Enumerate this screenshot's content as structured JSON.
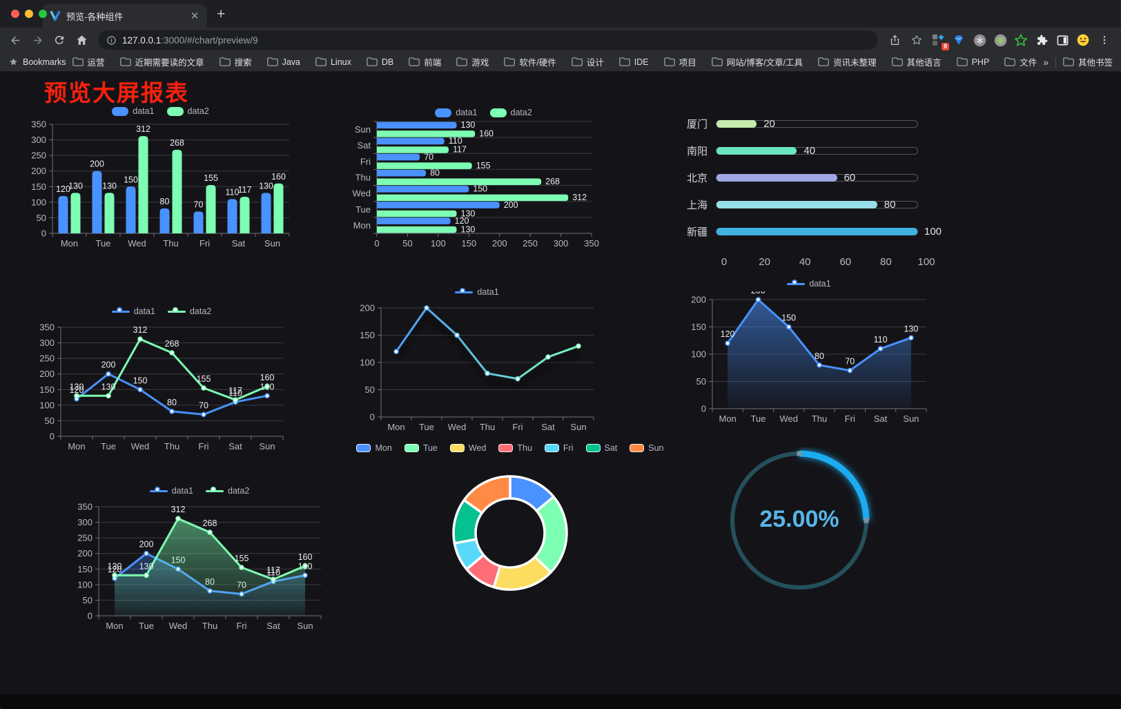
{
  "browser": {
    "tab_title": "预览-各种组件",
    "url_host": "127.0.0.1",
    "url_rest": ":3000/#/chart/preview/9",
    "bookmarks_label": "Bookmarks",
    "bookmarks": [
      "运营",
      "近期需要读的文章",
      "搜索",
      "Java",
      "Linux",
      "DB",
      "前端",
      "游戏",
      "软件/硬件",
      "设计",
      "IDE",
      "项目",
      "网站/博客/文章/工具",
      "资讯未整理",
      "其他语言",
      "PHP",
      "文件服务器"
    ],
    "overflow_chevron": "»",
    "other_bookmarks": "其他书签",
    "extension_badge": "9"
  },
  "page": {
    "title": "预览大屏报表",
    "title_color": "#fb200d",
    "background": "#141418"
  },
  "theme": {
    "axis_text": "#b8b8c4",
    "grid_line": "#3a3b42",
    "axis_line": "#71717a",
    "value_label": "#ececf0"
  },
  "chart_data": [
    {
      "id": "bar-grouped",
      "type": "bar",
      "categories": [
        "Mon",
        "Tue",
        "Wed",
        "Thu",
        "Fri",
        "Sat",
        "Sun"
      ],
      "series": [
        {
          "name": "data1",
          "color": "#4992ff",
          "values": [
            120,
            200,
            150,
            80,
            70,
            110,
            130
          ]
        },
        {
          "name": "data2",
          "color": "#7cffb2",
          "values": [
            130,
            130,
            312,
            268,
            155,
            117,
            160
          ]
        }
      ],
      "ylim": [
        0,
        350
      ],
      "ytick_step": 50,
      "grid": true,
      "legend_position": "top",
      "show_labels": true
    },
    {
      "id": "bar-horizontal",
      "type": "bar-horizontal",
      "categories": [
        "Mon",
        "Tue",
        "Wed",
        "Thu",
        "Fri",
        "Sat",
        "Sun"
      ],
      "series": [
        {
          "name": "data1",
          "color": "#4992ff",
          "values": [
            120,
            200,
            150,
            80,
            70,
            110,
            130
          ]
        },
        {
          "name": "data2",
          "color": "#7cffb2",
          "values": [
            130,
            130,
            312,
            268,
            155,
            117,
            160
          ]
        }
      ],
      "xlim": [
        0,
        350
      ],
      "xtick_step": 50,
      "grid": true,
      "legend_position": "top",
      "show_labels": true
    },
    {
      "id": "city-progress",
      "type": "progress-bars",
      "max": 100,
      "axis_ticks": [
        0,
        20,
        40,
        60,
        80,
        100
      ],
      "items": [
        {
          "label": "厦门",
          "value": 20,
          "color": "#c4ebad"
        },
        {
          "label": "南阳",
          "value": 40,
          "color": "#6be6c1"
        },
        {
          "label": "北京",
          "value": 60,
          "color": "#a0a7e6"
        },
        {
          "label": "上海",
          "value": 80,
          "color": "#96dee8"
        },
        {
          "label": "新疆",
          "value": 100,
          "color": "#3fb1e3"
        }
      ]
    },
    {
      "id": "line-two-series",
      "type": "line",
      "categories": [
        "Mon",
        "Tue",
        "Wed",
        "Thu",
        "Fri",
        "Sat",
        "Sun"
      ],
      "series": [
        {
          "name": "data1",
          "color": "#4992ff",
          "values": [
            120,
            200,
            150,
            80,
            70,
            110,
            130
          ]
        },
        {
          "name": "data2",
          "color": "#7cffb2",
          "values": [
            130,
            130,
            312,
            268,
            155,
            117,
            160
          ]
        }
      ],
      "ylim": [
        0,
        350
      ],
      "ytick_step": 50,
      "grid": true,
      "legend_position": "top",
      "show_labels": true
    },
    {
      "id": "line-gradient",
      "type": "line",
      "categories": [
        "Mon",
        "Tue",
        "Wed",
        "Thu",
        "Fri",
        "Sat",
        "Sun"
      ],
      "series": [
        {
          "name": "data1",
          "color": "#4992ff",
          "color_end": "#7cffb2",
          "values": [
            120,
            200,
            150,
            80,
            70,
            110,
            130
          ]
        }
      ],
      "ylim": [
        0,
        200
      ],
      "ytick_step": 50,
      "grid": true,
      "legend_position": "top",
      "show_labels": false,
      "gradient_stroke": true,
      "shadow": true
    },
    {
      "id": "area-single",
      "type": "area",
      "categories": [
        "Mon",
        "Tue",
        "Wed",
        "Thu",
        "Fri",
        "Sat",
        "Sun"
      ],
      "series": [
        {
          "name": "data1",
          "color": "#4992ff",
          "values": [
            120,
            200,
            150,
            80,
            70,
            110,
            130
          ]
        }
      ],
      "ylim": [
        0,
        200
      ],
      "ytick_step": 50,
      "grid": true,
      "legend_position": "top",
      "show_labels": true
    },
    {
      "id": "area-two-series",
      "type": "area",
      "categories": [
        "Mon",
        "Tue",
        "Wed",
        "Thu",
        "Fri",
        "Sat",
        "Sun"
      ],
      "series": [
        {
          "name": "data1",
          "color": "#4992ff",
          "values": [
            120,
            200,
            150,
            80,
            70,
            110,
            130
          ]
        },
        {
          "name": "data2",
          "color": "#7cffb2",
          "values": [
            130,
            130,
            312,
            268,
            155,
            117,
            160
          ]
        }
      ],
      "ylim": [
        0,
        350
      ],
      "ytick_step": 50,
      "grid": true,
      "legend_position": "top",
      "show_labels": true
    },
    {
      "id": "donut-week",
      "type": "pie",
      "inner_radius_ratio": 0.61,
      "labels": [
        "Mon",
        "Tue",
        "Wed",
        "Thu",
        "Fri",
        "Sat",
        "Sun"
      ],
      "values": [
        120,
        200,
        150,
        80,
        70,
        110,
        130
      ],
      "colors": [
        "#4992ff",
        "#7cffb2",
        "#fddd60",
        "#ff6e76",
        "#58d9f9",
        "#05c091",
        "#ff8a45"
      ],
      "legend_position": "top"
    },
    {
      "id": "gauge-percent",
      "type": "gauge",
      "value": 25,
      "max": 100,
      "label": "25.00%",
      "progress_color": "#1fabef",
      "track_color": "#24505c",
      "text_color": "#58b4e6"
    }
  ]
}
